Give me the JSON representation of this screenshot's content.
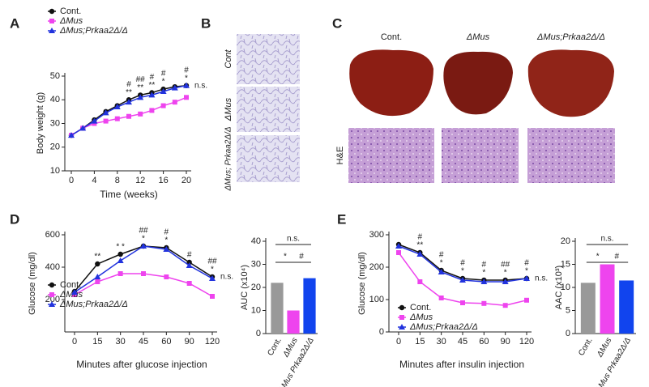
{
  "figure": {
    "panel_labels": [
      "A",
      "B",
      "C",
      "D",
      "E"
    ],
    "histology_labels": [
      "Cont",
      "ΔMus",
      "ΔMus; Prkaa2Δ/Δ"
    ],
    "liver_labels": [
      "Cont.",
      "ΔMus",
      "ΔMus;Prkaa2Δ/Δ"
    ],
    "he_label": "H&E"
  },
  "chart_data": [
    {
      "type": "line",
      "x_label": "Time (weeks)",
      "y_label": "Body weight (g)",
      "x": [
        0,
        2,
        4,
        6,
        8,
        10,
        12,
        14,
        16,
        18,
        20
      ],
      "xlim": [
        0,
        20
      ],
      "xticks": [
        0,
        4,
        8,
        12,
        16,
        20
      ],
      "ylim": [
        10,
        50
      ],
      "yticks": [
        10,
        20,
        30,
        40,
        50
      ],
      "legend": "top",
      "series": [
        {
          "name": "Cont.",
          "color": "#111111",
          "marker": "circle",
          "values": [
            25,
            28,
            31.5,
            35,
            37.5,
            40,
            42,
            43,
            44.5,
            45.5,
            46
          ]
        },
        {
          "name": "ΔMus",
          "color": "#ee44ee",
          "marker": "square",
          "values": [
            25,
            28,
            30,
            31,
            32,
            33,
            34,
            35.5,
            37.5,
            39,
            41
          ]
        },
        {
          "name": "ΔMus;Prkaa2Δ/Δ",
          "color": "#2233dd",
          "marker": "triangle",
          "values": [
            25,
            28,
            31,
            34.5,
            37,
            39,
            41,
            42,
            43.5,
            45,
            46
          ]
        }
      ],
      "annotations": [
        {
          "at": 10,
          "labels": [
            "#",
            "**"
          ]
        },
        {
          "at": 12,
          "labels": [
            "##",
            "**"
          ]
        },
        {
          "at": 14,
          "labels": [
            "#",
            "**"
          ]
        },
        {
          "at": 16,
          "labels": [
            "#",
            "*"
          ]
        },
        {
          "at": 20,
          "labels": [
            "#",
            "*"
          ]
        }
      ],
      "end_label": "n.s."
    },
    {
      "type": "line",
      "x_label": "Minutes after glucose injection",
      "y_label": "Glucose (mg/dl)",
      "categories": [
        "0",
        "15",
        "30",
        "45",
        "60",
        "90",
        "120"
      ],
      "ylim": [
        0,
        600
      ],
      "yticks": [
        200,
        400,
        600
      ],
      "legend": "lower left",
      "series": [
        {
          "name": "Cont.",
          "color": "#111111",
          "marker": "circle",
          "values": [
            250,
            420,
            480,
            530,
            520,
            430,
            340
          ]
        },
        {
          "name": "ΔMus",
          "color": "#ee44ee",
          "marker": "square",
          "values": [
            230,
            310,
            360,
            360,
            340,
            300,
            220
          ]
        },
        {
          "name": "ΔMus;Prkaa2Δ/Δ",
          "color": "#2233dd",
          "marker": "triangle",
          "values": [
            245,
            340,
            440,
            530,
            510,
            410,
            330
          ]
        }
      ],
      "annotations": [
        {
          "at": "15",
          "labels": [
            "**"
          ]
        },
        {
          "at": "30",
          "labels": [
            "* *"
          ]
        },
        {
          "at": "45",
          "labels": [
            "##",
            "*"
          ]
        },
        {
          "at": "60",
          "labels": [
            "#",
            "*"
          ]
        },
        {
          "at": "90",
          "labels": [
            "#"
          ]
        },
        {
          "at": "120",
          "labels": [
            "##",
            "*"
          ]
        }
      ],
      "end_label": "n.s."
    },
    {
      "type": "bar",
      "y_label": "AUC (x10⁴)",
      "categories": [
        "Cont.",
        "ΔMus",
        "ΔMus Prkaa2Δ/Δ"
      ],
      "values": [
        22,
        10,
        24
      ],
      "colors": [
        "#999999",
        "#ee44ee",
        "#1144ee"
      ],
      "ylim": [
        0,
        40
      ],
      "yticks": [
        0,
        10,
        20,
        30,
        40
      ],
      "comparisons": [
        {
          "groups": [
            "Cont.",
            "ΔMus Prkaa2Δ/Δ"
          ],
          "label": "n.s."
        },
        {
          "groups": [
            "Cont.",
            "ΔMus"
          ],
          "label": "*"
        },
        {
          "groups": [
            "ΔMus",
            "ΔMus Prkaa2Δ/Δ"
          ],
          "label": "#"
        }
      ]
    },
    {
      "type": "line",
      "x_label": "Minutes after insulin injection",
      "y_label": "Glucose (mg/dl)",
      "categories": [
        "0",
        "15",
        "30",
        "45",
        "60",
        "90",
        "120"
      ],
      "ylim": [
        0,
        300
      ],
      "yticks": [
        0,
        100,
        200,
        300
      ],
      "legend": "lower left",
      "series": [
        {
          "name": "Cont.",
          "color": "#111111",
          "marker": "circle",
          "values": [
            270,
            245,
            190,
            165,
            160,
            160,
            165
          ]
        },
        {
          "name": "ΔMus",
          "color": "#ee44ee",
          "marker": "square",
          "values": [
            245,
            155,
            105,
            90,
            88,
            82,
            98
          ]
        },
        {
          "name": "ΔMus;Prkaa2Δ/Δ",
          "color": "#2233dd",
          "marker": "triangle",
          "values": [
            265,
            240,
            185,
            160,
            155,
            155,
            165
          ]
        }
      ],
      "annotations": [
        {
          "at": "15",
          "labels": [
            "#",
            "**"
          ]
        },
        {
          "at": "30",
          "labels": [
            "#",
            "*"
          ]
        },
        {
          "at": "45",
          "labels": [
            "#",
            "*"
          ]
        },
        {
          "at": "60",
          "labels": [
            "#",
            "*"
          ]
        },
        {
          "at": "90",
          "labels": [
            "##",
            "*"
          ]
        },
        {
          "at": "120",
          "labels": [
            "#",
            "*"
          ]
        }
      ],
      "end_label": "n.s."
    },
    {
      "type": "bar",
      "y_label": "AAC (x10³)",
      "categories": [
        "Cont.",
        "ΔMus",
        "ΔMus Prkaa2Δ/Δ"
      ],
      "values": [
        11,
        15,
        11.5
      ],
      "colors": [
        "#999999",
        "#ee44ee",
        "#1144ee"
      ],
      "ylim": [
        0,
        20
      ],
      "yticks": [
        0,
        5,
        10,
        15,
        20
      ],
      "comparisons": [
        {
          "groups": [
            "Cont.",
            "ΔMus Prkaa2Δ/Δ"
          ],
          "label": "n.s."
        },
        {
          "groups": [
            "Cont.",
            "ΔMus"
          ],
          "label": "*"
        },
        {
          "groups": [
            "ΔMus",
            "ΔMus Prkaa2Δ/Δ"
          ],
          "label": "#"
        }
      ]
    }
  ]
}
